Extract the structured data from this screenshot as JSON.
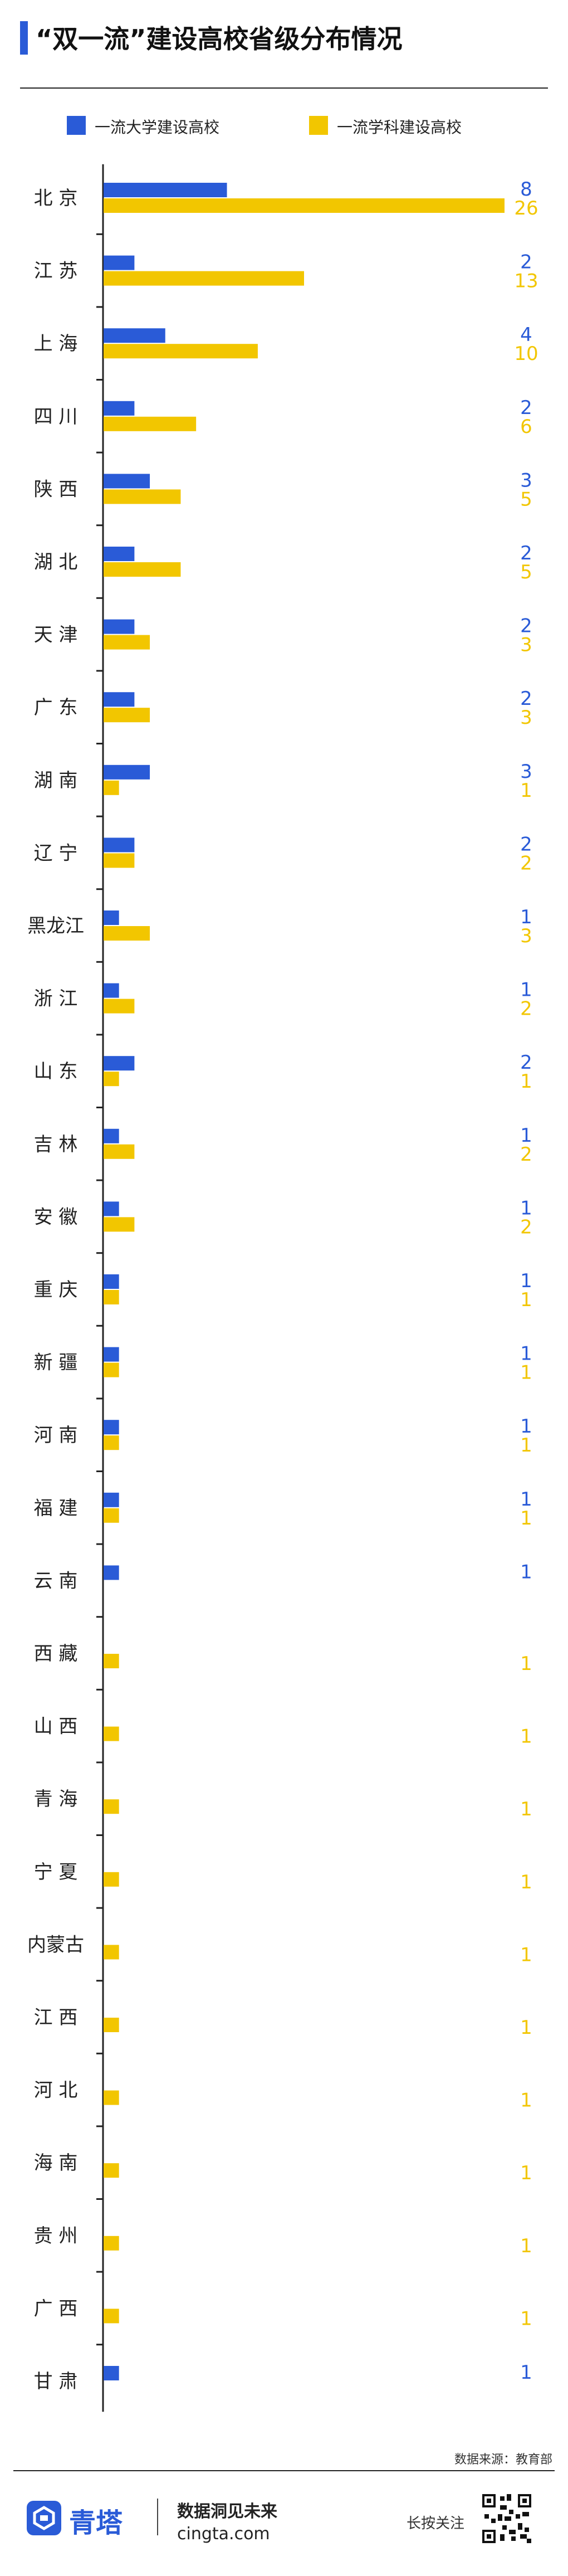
{
  "title": "“双一流”建设高校省级分布情况",
  "colors": {
    "blue": "#2a5bd7",
    "yellow": "#f2c600",
    "axis": "#222222",
    "brand": "#2a5bd7"
  },
  "legend": [
    {
      "label": "一流大学建设高校",
      "color": "#2a5bd7"
    },
    {
      "label": "一流学科建设高校",
      "color": "#f2c600"
    }
  ],
  "chart_data": {
    "type": "bar",
    "orientation": "horizontal",
    "title": "“双一流”建设高校省级分布情况",
    "categories": [
      "北 京",
      "江 苏",
      "上 海",
      "四 川",
      "陕 西",
      "湖 北",
      "天 津",
      "广 东",
      "湖 南",
      "辽 宁",
      "黑龙江",
      "浙 江",
      "山 东",
      "吉 林",
      "安 徽",
      "重 庆",
      "新 疆",
      "河 南",
      "福 建",
      "云 南",
      "西 藏",
      "山 西",
      "青 海",
      "宁 夏",
      "内蒙古",
      "江 西",
      "河 北",
      "海 南",
      "贵 州",
      "广 西",
      "甘 肃"
    ],
    "series": [
      {
        "name": "一流大学建设高校",
        "color": "#2a5bd7",
        "values": [
          8,
          2,
          4,
          2,
          3,
          2,
          2,
          2,
          3,
          2,
          1,
          1,
          2,
          1,
          1,
          1,
          1,
          1,
          1,
          1,
          null,
          null,
          null,
          null,
          null,
          null,
          null,
          null,
          null,
          null,
          1
        ]
      },
      {
        "name": "一流学科建设高校",
        "color": "#f2c600",
        "values": [
          26,
          13,
          10,
          6,
          5,
          5,
          3,
          3,
          1,
          2,
          3,
          2,
          1,
          2,
          2,
          1,
          1,
          1,
          1,
          null,
          1,
          1,
          1,
          1,
          1,
          1,
          1,
          1,
          1,
          1,
          null
        ]
      }
    ],
    "xlim": [
      0,
      26
    ],
    "grid": false,
    "legend_position": "top"
  },
  "source_note": "数据来源：教育部",
  "footer": {
    "brand": "青塔",
    "slogan": "数据洞见未来",
    "site": "cingta.com",
    "press_label": "长按关注"
  }
}
